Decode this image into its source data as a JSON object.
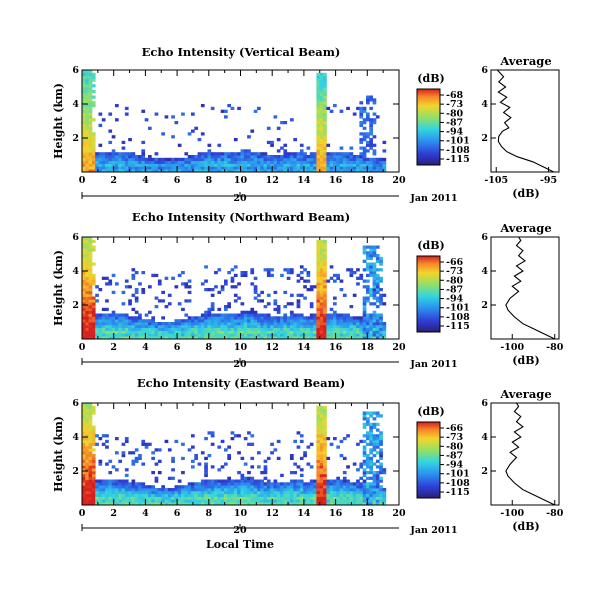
{
  "chart_data": [
    {
      "type": "heatmap",
      "title": "Echo Intensity (Vertical Beam)",
      "ylabel": "Height (km)",
      "y_ticks": [
        "2",
        "4",
        "6"
      ],
      "ylim": [
        0,
        6
      ],
      "x_ticks": [
        "0",
        "2",
        "4",
        "6",
        "8",
        "10",
        "12",
        "14",
        "16",
        "18",
        "20"
      ],
      "xlim": [
        0,
        20
      ],
      "date_tick": "20",
      "date_label": "Jan 2011",
      "colorbar": {
        "unit": "(dB)",
        "ticks": [
          "-68",
          "-73",
          "-80",
          "-87",
          "-94",
          "-101",
          "-108",
          "-115"
        ]
      },
      "profile": {
        "title": "Average",
        "xlabel": "(dB)",
        "x_ticks": [
          "-105",
          "-95"
        ],
        "xlim": [
          -106,
          -93
        ],
        "y_ticks": [
          "2",
          "4",
          "6"
        ],
        "ylim": [
          0,
          6
        ],
        "points": [
          [
            -94,
            0
          ],
          [
            -96,
            0.3
          ],
          [
            -98,
            0.6
          ],
          [
            -101,
            0.9
          ],
          [
            -103,
            1.2
          ],
          [
            -104,
            1.5
          ],
          [
            -104.6,
            1.8
          ],
          [
            -104.5,
            2.1
          ],
          [
            -103.8,
            2.4
          ],
          [
            -102.6,
            2.6
          ],
          [
            -103.4,
            2.9
          ],
          [
            -102.2,
            3.2
          ],
          [
            -103.6,
            3.5
          ],
          [
            -102.4,
            3.8
          ],
          [
            -104.2,
            4.1
          ],
          [
            -103,
            4.4
          ],
          [
            -104.6,
            4.7
          ],
          [
            -103.2,
            5
          ],
          [
            -104.5,
            5.3
          ],
          [
            -103.6,
            5.6
          ],
          [
            -104.8,
            6
          ]
        ]
      }
    },
    {
      "type": "heatmap",
      "title": "Echo Intensity (Northward Beam)",
      "ylabel": "Height (km)",
      "y_ticks": [
        "2",
        "4",
        "6"
      ],
      "ylim": [
        0,
        6
      ],
      "x_ticks": [
        "0",
        "2",
        "4",
        "6",
        "8",
        "10",
        "12",
        "14",
        "16",
        "18",
        "20"
      ],
      "xlim": [
        0,
        20
      ],
      "date_tick": "20",
      "date_label": "Jan 2011",
      "colorbar": {
        "unit": "(dB)",
        "ticks": [
          "-66",
          "-73",
          "-80",
          "-87",
          "-94",
          "-101",
          "-108",
          "-115"
        ]
      },
      "profile": {
        "title": "Average",
        "xlabel": "(dB)",
        "x_ticks": [
          "-100",
          "-80"
        ],
        "xlim": [
          -110,
          -78
        ],
        "y_ticks": [
          "2",
          "4",
          "6"
        ],
        "ylim": [
          0,
          6
        ],
        "points": [
          [
            -80,
            0
          ],
          [
            -85,
            0.3
          ],
          [
            -90,
            0.6
          ],
          [
            -95,
            0.9
          ],
          [
            -99,
            1.3
          ],
          [
            -102,
            1.7
          ],
          [
            -103,
            2
          ],
          [
            -101,
            2.4
          ],
          [
            -97,
            2.8
          ],
          [
            -100,
            3.1
          ],
          [
            -96,
            3.4
          ],
          [
            -99,
            3.7
          ],
          [
            -95,
            4
          ],
          [
            -98,
            4.3
          ],
          [
            -94,
            4.6
          ],
          [
            -97,
            4.9
          ],
          [
            -95,
            5.2
          ],
          [
            -98,
            5.5
          ],
          [
            -96,
            5.8
          ],
          [
            -97,
            6
          ]
        ]
      }
    },
    {
      "type": "heatmap",
      "title": "Echo Intensity (Eastward Beam)",
      "ylabel": "Height (km)",
      "y_ticks": [
        "2",
        "4",
        "6"
      ],
      "ylim": [
        0,
        6
      ],
      "x_ticks": [
        "0",
        "2",
        "4",
        "6",
        "8",
        "10",
        "12",
        "14",
        "16",
        "18",
        "20"
      ],
      "xlim": [
        0,
        20
      ],
      "date_tick": "20",
      "date_label": "Jan 2011",
      "xlabel": "Local Time",
      "colorbar": {
        "unit": "(dB)",
        "ticks": [
          "-66",
          "-73",
          "-80",
          "-87",
          "-94",
          "-101",
          "-108",
          "-115"
        ]
      },
      "profile": {
        "title": "Average",
        "xlabel": "(dB)",
        "x_ticks": [
          "-100",
          "-80"
        ],
        "xlim": [
          -110,
          -78
        ],
        "y_ticks": [
          "2",
          "4",
          "6"
        ],
        "ylim": [
          0,
          6
        ],
        "points": [
          [
            -80,
            0
          ],
          [
            -85,
            0.3
          ],
          [
            -90,
            0.6
          ],
          [
            -95,
            0.9
          ],
          [
            -99,
            1.3
          ],
          [
            -102,
            1.7
          ],
          [
            -103,
            2
          ],
          [
            -101,
            2.4
          ],
          [
            -98,
            2.8
          ],
          [
            -101,
            3.1
          ],
          [
            -97,
            3.4
          ],
          [
            -100,
            3.7
          ],
          [
            -96,
            4
          ],
          [
            -99,
            4.3
          ],
          [
            -95,
            4.6
          ],
          [
            -98,
            4.9
          ],
          [
            -96,
            5.2
          ],
          [
            -99,
            5.5
          ],
          [
            -97,
            5.8
          ],
          [
            -98,
            6
          ]
        ]
      }
    }
  ]
}
